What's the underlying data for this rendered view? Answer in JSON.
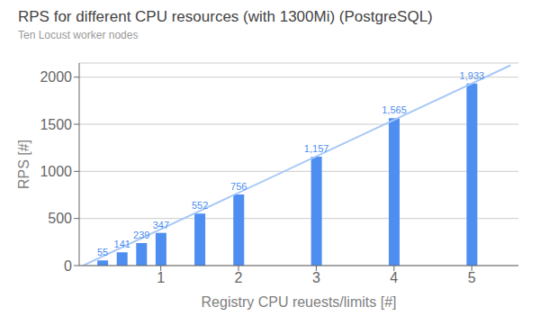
{
  "chart_data": {
    "type": "bar",
    "title": "RPS for different CPU resources (with 1300Mi) (PostgreSQL)",
    "subtitle": "Ten Locust worker nodes",
    "x_label": "Registry CPU reuests/limits [#]",
    "y_label": "RPS [#]",
    "xlim": [
      -0.05,
      5.6
    ],
    "xticks": [
      1,
      2,
      3,
      4,
      5
    ],
    "ylim": [
      0,
      2150
    ],
    "yticks": [
      0,
      500,
      1000,
      1500,
      2000
    ],
    "grid": "y",
    "data_labels": true,
    "series": [
      {
        "type": "bar",
        "color": "#4d8ef0",
        "x": [
          0.25,
          0.5,
          0.75,
          1.0,
          1.5,
          2.0,
          3.0,
          4.0,
          5.0
        ],
        "values": [
          55,
          141,
          239,
          347,
          552,
          756,
          1157,
          1565,
          1933
        ],
        "value_labels": [
          "55",
          "141",
          "239",
          "347",
          "552",
          "756",
          "1,157",
          "1,565",
          "1,933"
        ]
      },
      {
        "type": "line",
        "color": "#a8c8f8",
        "x": [
          0,
          5.5
        ],
        "values": [
          0,
          2126.3
        ]
      }
    ]
  }
}
